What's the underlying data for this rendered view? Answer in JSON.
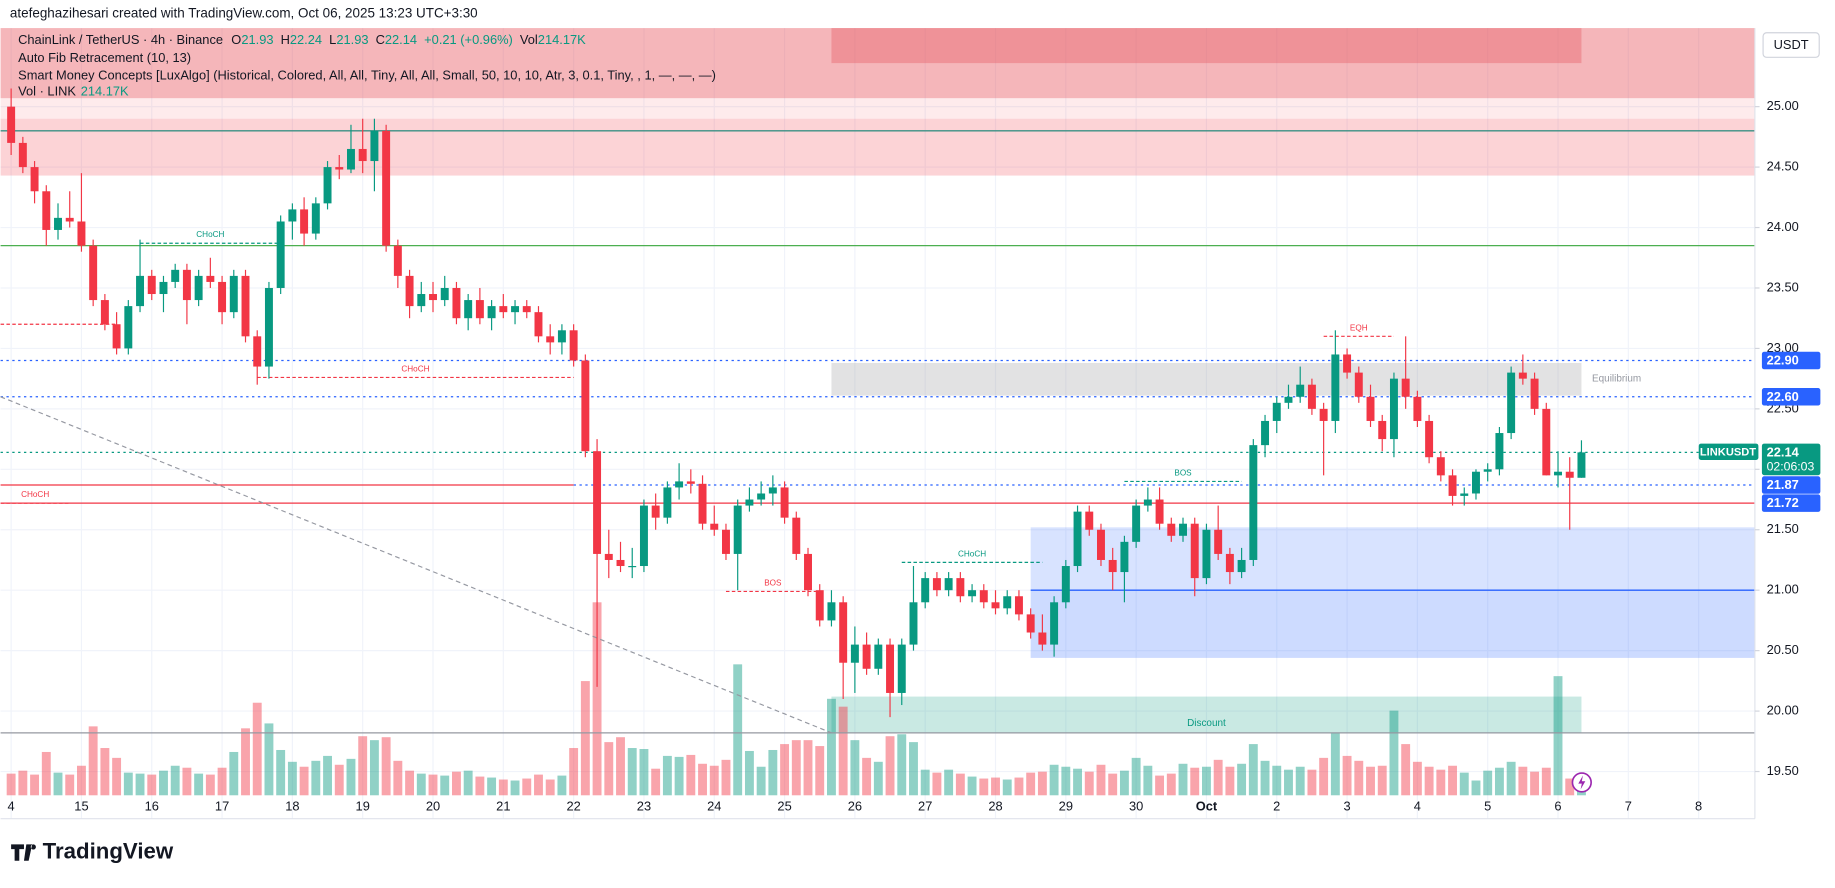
{
  "header": {
    "credit": "atefeghazihesari created with TradingView.com, Oct 06, 2025 13:23 UTC+3:30",
    "symbol": "ChainLink / TetherUS · 4h · Binance",
    "ohlc_letters": [
      "O",
      "H",
      "L",
      "C"
    ],
    "change": "+0.21 (+0.96%)",
    "vol_label": "Vol",
    "vol": "214.17K",
    "indicators": [
      "Auto Fib Retracement (10, 13)",
      "Smart Money Concepts [LuxAlgo] (Historical, Colored, All, All, Tiny, All, All, Small, 50, 10, 10, Atr, 3, 0.1, Tiny, , 1, —, —, —)"
    ],
    "vol_line": "Vol · LINK",
    "vol_line_value": "214.17K"
  },
  "footer": {
    "logo": "TradingView"
  },
  "chart_data": {
    "type": "candlestick",
    "currency": "USDT",
    "up_color": "#089981",
    "down_color": "#f23645",
    "grid": true,
    "xlim": [
      -0.9,
      148.8
    ],
    "ylim": [
      19.11,
      25.65
    ],
    "xticks": [
      {
        "value": 0,
        "label": "4"
      },
      {
        "value": 6,
        "label": "15"
      },
      {
        "value": 12,
        "label": "16"
      },
      {
        "value": 18,
        "label": "17"
      },
      {
        "value": 24,
        "label": "18"
      },
      {
        "value": 30,
        "label": "19"
      },
      {
        "value": 36,
        "label": "20"
      },
      {
        "value": 42,
        "label": "21"
      },
      {
        "value": 48,
        "label": "22"
      },
      {
        "value": 54,
        "label": "23"
      },
      {
        "value": 60,
        "label": "24"
      },
      {
        "value": 66,
        "label": "25"
      },
      {
        "value": 72,
        "label": "26"
      },
      {
        "value": 78,
        "label": "27"
      },
      {
        "value": 84,
        "label": "28"
      },
      {
        "value": 90,
        "label": "29"
      },
      {
        "value": 96,
        "label": "30"
      },
      {
        "value": 102,
        "label": "Oct"
      },
      {
        "value": 108,
        "label": "2"
      },
      {
        "value": 114,
        "label": "3"
      },
      {
        "value": 120,
        "label": "4"
      },
      {
        "value": 126,
        "label": "5"
      },
      {
        "value": 132,
        "label": "6"
      },
      {
        "value": 138,
        "label": "7"
      },
      {
        "value": 144,
        "label": "8"
      }
    ],
    "yticks": [
      {
        "value": 19.5,
        "label": "19.50"
      },
      {
        "value": 20,
        "label": "20.00"
      },
      {
        "value": 20.5,
        "label": "20.50"
      },
      {
        "value": 21,
        "label": "21.00"
      },
      {
        "value": 21.5,
        "label": "21.50"
      },
      {
        "value": 22,
        "label": "22.00"
      },
      {
        "value": 22.5,
        "label": "22.50"
      },
      {
        "value": 23,
        "label": "23.00"
      },
      {
        "value": 23.5,
        "label": "23.50"
      },
      {
        "value": 24,
        "label": "24.00"
      },
      {
        "value": 24.5,
        "label": "24.50"
      },
      {
        "value": 25,
        "label": "25.00"
      }
    ],
    "open": [
      25.0,
      24.7,
      24.5,
      24.3,
      23.98,
      24.08,
      24.05,
      23.85,
      23.4,
      23.2,
      23.0,
      23.35,
      23.6,
      23.45,
      23.55,
      23.65,
      23.4,
      23.6,
      23.55,
      23.3,
      23.6,
      23.1,
      22.85,
      23.5,
      24.05,
      24.15,
      23.95,
      24.2,
      24.5,
      24.48,
      24.65,
      24.55,
      24.8,
      23.85,
      23.6,
      23.35,
      23.45,
      23.4,
      23.5,
      23.25,
      23.4,
      23.25,
      23.35,
      23.3,
      23.35,
      23.3,
      23.1,
      23.05,
      23.15,
      22.9,
      22.15,
      21.3,
      21.25,
      21.2,
      21.2,
      21.7,
      21.6,
      21.85,
      21.9,
      21.88,
      21.55,
      21.5,
      21.3,
      21.7,
      21.75,
      21.8,
      21.85,
      21.6,
      21.3,
      21.0,
      20.75,
      20.9,
      20.4,
      20.55,
      20.35,
      20.55,
      20.15,
      20.55,
      20.9,
      21.1,
      21.0,
      21.1,
      20.95,
      21.0,
      20.9,
      20.85,
      20.95,
      20.8,
      20.65,
      20.55,
      20.9,
      21.2,
      21.65,
      21.5,
      21.25,
      21.15,
      21.4,
      21.7,
      21.75,
      21.55,
      21.45,
      21.55,
      21.1,
      21.5,
      21.3,
      21.15,
      21.25,
      22.2,
      22.4,
      22.55,
      22.6,
      22.7,
      22.5,
      22.4,
      22.95,
      22.8,
      22.6,
      22.4,
      22.25,
      22.75,
      22.6,
      22.4,
      22.1,
      21.95,
      21.78,
      21.8,
      21.98,
      22.0,
      22.3,
      22.8,
      22.75,
      22.5,
      21.95,
      21.98,
      21.93
    ],
    "high": [
      25.15,
      24.75,
      24.55,
      24.35,
      24.2,
      24.3,
      24.45,
      23.9,
      23.45,
      23.3,
      23.4,
      23.9,
      23.65,
      23.6,
      23.7,
      23.7,
      23.65,
      23.75,
      23.6,
      23.65,
      23.65,
      23.15,
      23.55,
      24.1,
      24.2,
      24.25,
      24.25,
      24.55,
      24.6,
      24.85,
      24.9,
      24.9,
      24.85,
      23.9,
      23.65,
      23.55,
      23.55,
      23.6,
      23.55,
      23.45,
      23.5,
      23.4,
      23.45,
      23.4,
      23.4,
      23.35,
      23.2,
      23.2,
      23.2,
      22.95,
      22.25,
      21.5,
      21.4,
      21.35,
      21.75,
      21.8,
      21.9,
      22.05,
      22.0,
      21.95,
      21.7,
      21.55,
      21.75,
      21.85,
      21.9,
      21.95,
      21.9,
      21.65,
      21.35,
      21.05,
      21.0,
      20.95,
      20.7,
      20.65,
      20.6,
      20.6,
      20.6,
      21.2,
      21.15,
      21.15,
      21.15,
      21.15,
      21.05,
      21.05,
      21.0,
      21.0,
      21.0,
      20.85,
      20.8,
      20.95,
      21.25,
      21.7,
      21.7,
      21.55,
      21.35,
      21.45,
      21.75,
      21.85,
      21.85,
      21.6,
      21.6,
      21.6,
      21.55,
      21.7,
      21.35,
      21.35,
      22.25,
      22.45,
      22.6,
      22.7,
      22.85,
      22.75,
      22.55,
      23.15,
      23.0,
      22.85,
      22.7,
      22.45,
      22.8,
      23.1,
      22.65,
      22.45,
      22.15,
      22.0,
      21.85,
      22.0,
      22.05,
      22.35,
      22.85,
      22.95,
      22.8,
      22.55,
      22.15,
      22.1,
      22.24
    ],
    "low": [
      24.6,
      24.45,
      24.2,
      23.85,
      23.9,
      24.0,
      23.8,
      23.35,
      23.15,
      22.95,
      22.95,
      23.3,
      23.4,
      23.3,
      23.5,
      23.2,
      23.35,
      23.5,
      23.2,
      23.25,
      23.05,
      22.7,
      22.75,
      23.45,
      23.9,
      23.85,
      23.9,
      24.15,
      24.4,
      24.45,
      24.45,
      24.3,
      23.8,
      23.5,
      23.25,
      23.3,
      23.3,
      23.35,
      23.2,
      23.15,
      23.2,
      23.15,
      23.25,
      23.2,
      23.25,
      23.05,
      22.95,
      22.95,
      22.85,
      22.1,
      20.2,
      21.1,
      21.15,
      21.1,
      21.15,
      21.5,
      21.55,
      21.75,
      21.8,
      21.5,
      21.45,
      21.25,
      21.0,
      21.65,
      21.7,
      21.7,
      21.55,
      21.25,
      20.95,
      20.7,
      20.7,
      20.1,
      20.15,
      20.3,
      20.3,
      19.95,
      20.05,
      20.5,
      20.85,
      20.95,
      20.95,
      20.9,
      20.9,
      20.85,
      20.8,
      20.8,
      20.75,
      20.6,
      20.5,
      20.45,
      20.85,
      21.15,
      21.45,
      21.2,
      21.0,
      20.9,
      21.35,
      21.65,
      21.5,
      21.4,
      21.4,
      20.95,
      21.05,
      21.25,
      21.05,
      21.1,
      21.2,
      22.1,
      22.3,
      22.5,
      22.55,
      22.45,
      21.95,
      22.3,
      22.75,
      22.55,
      22.35,
      22.15,
      22.1,
      22.5,
      22.35,
      22.05,
      21.9,
      21.7,
      21.7,
      21.75,
      21.9,
      21.95,
      22.25,
      22.7,
      22.45,
      21.95,
      21.85,
      21.5,
      21.93
    ],
    "close": [
      24.7,
      24.5,
      24.3,
      23.98,
      24.08,
      24.05,
      23.85,
      23.4,
      23.2,
      23.0,
      23.35,
      23.6,
      23.45,
      23.55,
      23.65,
      23.4,
      23.6,
      23.55,
      23.3,
      23.6,
      23.1,
      22.85,
      23.5,
      24.05,
      24.15,
      23.95,
      24.2,
      24.5,
      24.48,
      24.65,
      24.55,
      24.8,
      23.85,
      23.6,
      23.35,
      23.45,
      23.4,
      23.5,
      23.25,
      23.4,
      23.25,
      23.35,
      23.3,
      23.35,
      23.3,
      23.1,
      23.05,
      23.15,
      22.9,
      22.15,
      21.3,
      21.25,
      21.2,
      21.2,
      21.7,
      21.6,
      21.85,
      21.9,
      21.88,
      21.55,
      21.5,
      21.3,
      21.7,
      21.75,
      21.8,
      21.85,
      21.6,
      21.3,
      21.0,
      20.75,
      20.9,
      20.4,
      20.55,
      20.35,
      20.55,
      20.15,
      20.55,
      20.9,
      21.1,
      21.0,
      21.1,
      20.95,
      21.0,
      20.9,
      20.85,
      20.95,
      20.8,
      20.65,
      20.55,
      20.9,
      21.2,
      21.65,
      21.5,
      21.25,
      21.15,
      21.4,
      21.7,
      21.75,
      21.55,
      21.45,
      21.55,
      21.1,
      21.5,
      21.3,
      21.15,
      21.25,
      22.2,
      22.4,
      22.55,
      22.6,
      22.7,
      22.5,
      22.4,
      22.95,
      22.8,
      22.6,
      22.4,
      22.25,
      22.75,
      22.6,
      22.4,
      22.1,
      21.95,
      21.78,
      21.8,
      21.98,
      22.0,
      22.3,
      22.8,
      22.75,
      22.5,
      21.95,
      21.98,
      21.93,
      22.14
    ],
    "volume": [
      220,
      250,
      210,
      440,
      230,
      210,
      300,
      700,
      480,
      380,
      230,
      220,
      210,
      250,
      300,
      280,
      220,
      210,
      280,
      440,
      680,
      940,
      730,
      460,
      340,
      290,
      350,
      400,
      310,
      370,
      600,
      560,
      590,
      350,
      250,
      220,
      210,
      200,
      240,
      250,
      190,
      180,
      160,
      150,
      170,
      210,
      160,
      200,
      480,
      1160,
      1960,
      540,
      590,
      480,
      470,
      270,
      400,
      390,
      410,
      320,
      300,
      360,
      1330,
      450,
      290,
      460,
      520,
      560,
      560,
      500,
      980,
      900,
      560,
      380,
      340,
      600,
      620,
      540,
      260,
      230,
      260,
      220,
      190,
      170,
      180,
      160,
      180,
      230,
      240,
      310,
      290,
      270,
      240,
      310,
      220,
      250,
      380,
      300,
      200,
      220,
      320,
      280,
      290,
      360,
      290,
      320,
      520,
      350,
      300,
      260,
      290,
      260,
      380,
      630,
      400,
      350,
      290,
      300,
      860,
      520,
      340,
      290,
      260,
      300,
      230,
      150,
      250,
      280,
      340,
      290,
      240,
      280,
      1210,
      170,
      214.17
    ],
    "zones": [
      {
        "top": 25.65,
        "bottom": 25.07,
        "from": -0.9,
        "color": "rgba(230,80,90,0.42)"
      },
      {
        "top": 25.65,
        "bottom": 25.36,
        "from": 70,
        "to": 134,
        "color": "rgba(230,80,90,0.35)"
      },
      {
        "top": 25.07,
        "bottom": 24.9,
        "from": -0.9,
        "color": "rgba(242,54,69,0.10)"
      },
      {
        "top": 24.9,
        "bottom": 24.43,
        "from": -0.9,
        "color": "rgba(242,54,69,0.22)"
      },
      {
        "top": 22.88,
        "bottom": 22.61,
        "from": 70,
        "to": 134,
        "color": "rgba(150,150,155,0.28)"
      },
      {
        "top": 21.52,
        "bottom": 20.44,
        "from": 87,
        "color": "rgba(41,98,255,0.18)"
      },
      {
        "top": 21.0,
        "bottom": 20.44,
        "from": 87,
        "color": "rgba(41,98,255,0.06)"
      },
      {
        "top": 20.12,
        "bottom": 19.82,
        "from": 70,
        "to": 134,
        "color": "rgba(8,153,129,0.22)"
      }
    ],
    "lines": [
      {
        "value": 24.8,
        "color": "#3a8f84",
        "style": "solid",
        "from": -0.9
      },
      {
        "value": 23.85,
        "color": "#4caf50",
        "style": "solid",
        "from": -0.9
      },
      {
        "value": 22.9,
        "color": "#2962ff",
        "style": "dotted",
        "from": -0.9
      },
      {
        "value": 22.6,
        "color": "#2962ff",
        "style": "dotted",
        "from": -0.9
      },
      {
        "value": 22.14,
        "color": "#089981",
        "style": "dotted",
        "from": -0.9
      },
      {
        "value": 21.87,
        "color": "#2962ff",
        "style": "dotted",
        "from": 48
      },
      {
        "value": 21.87,
        "color": "#f23645",
        "style": "solid",
        "from": -0.9,
        "to": 48
      },
      {
        "value": 21.72,
        "color": "#f23645",
        "style": "solid",
        "from": -0.9
      },
      {
        "value": 21.0,
        "color": "#2962ff",
        "style": "solid",
        "from": 87
      },
      {
        "value": 19.82,
        "color": "#9598a1",
        "style": "solid",
        "from": -0.9
      }
    ],
    "trendline": {
      "from": [
        -0.9,
        22.6
      ],
      "to": [
        70,
        19.82
      ],
      "color": "#9598a1"
    },
    "annotations": [
      {
        "text": "CHoCH",
        "value": 23.87,
        "from": 11,
        "to": 23,
        "color": "#089981"
      },
      {
        "text": "CHoCH",
        "value": 22.76,
        "from": 21,
        "to": 48,
        "color": "#f23645"
      },
      {
        "value": 23.2,
        "from": -0.9,
        "to": 9,
        "color": "#f23645"
      },
      {
        "text": "CHoCH",
        "value": 21.72,
        "from": -0.9,
        "to": 5,
        "color": "#f23645"
      },
      {
        "text": "BOS",
        "value": 20.99,
        "from": 61,
        "to": 69,
        "color": "#f23645"
      },
      {
        "text": "CHoCH",
        "value": 21.23,
        "from": 76,
        "to": 88,
        "color": "#089981"
      },
      {
        "text": "BOS",
        "value": 21.9,
        "from": 95,
        "to": 105,
        "color": "#089981"
      },
      {
        "text": "EQH",
        "value": 23.1,
        "from": 112,
        "to": 118,
        "color": "#f23645"
      }
    ],
    "labels": [
      {
        "text": "Equilibrium",
        "value": 22.75,
        "at": 137,
        "color": "#9598a1"
      },
      {
        "text": "Discount",
        "value": 19.9,
        "at": 102,
        "color": "#089981"
      }
    ],
    "price_labels": [
      {
        "value": 22.9,
        "label": "22.90",
        "color": "#2962ff"
      },
      {
        "value": 22.6,
        "label": "22.60",
        "color": "#2962ff"
      },
      {
        "value": 21.87,
        "label": "21.87",
        "color": "#2962ff"
      },
      {
        "value": 21.72,
        "label": "21.72",
        "color": "#2962ff"
      }
    ],
    "last_price": {
      "value": 22.14,
      "label": "22.14",
      "name": "LINKUSDT",
      "countdown": "02:06:03",
      "color": "#089981"
    }
  }
}
